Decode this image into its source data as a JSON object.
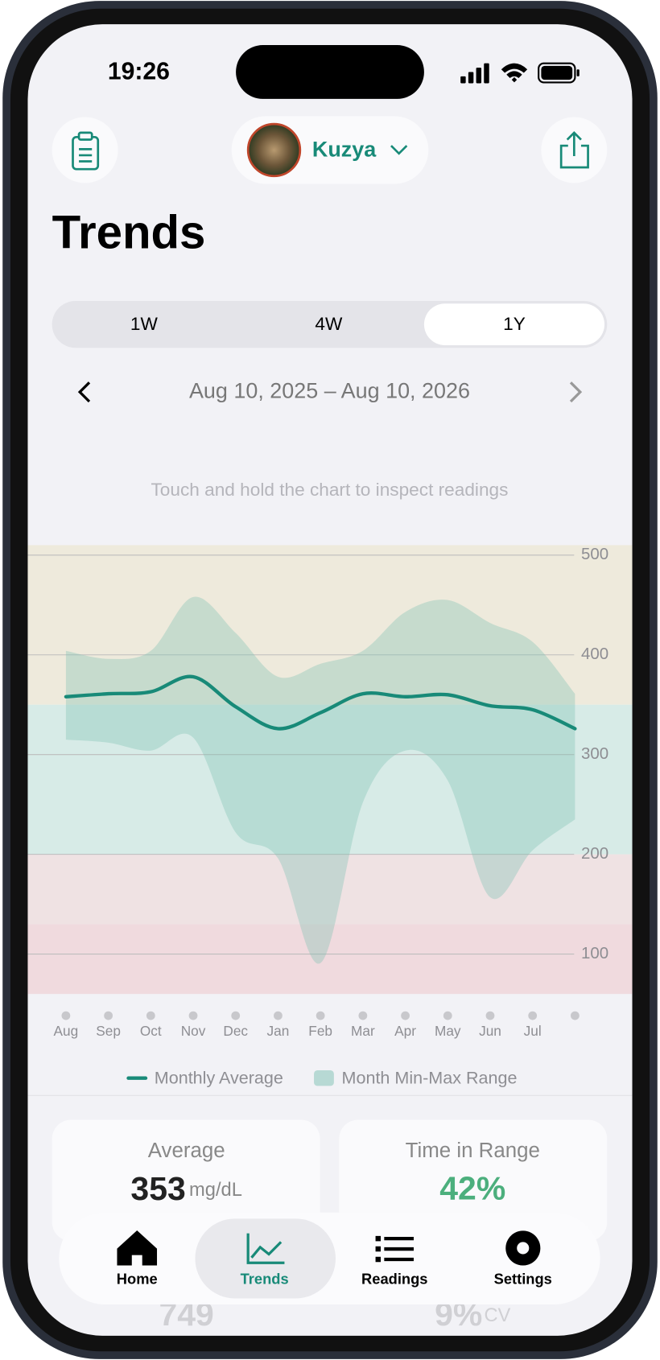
{
  "status_bar": {
    "time": "19:26"
  },
  "header": {
    "profile_name": "Kuzya"
  },
  "title": "Trends",
  "segments": {
    "options": [
      "1W",
      "4W",
      "1Y"
    ],
    "selected": 2
  },
  "date_range": "Aug 10, 2025 – Aug 10, 2026",
  "hint": "Touch and hold the chart to inspect readings",
  "chart": {
    "type": "line",
    "categories": [
      "Aug",
      "Sep",
      "Oct",
      "Nov",
      "Dec",
      "Jan",
      "Feb",
      "Mar",
      "Apr",
      "May",
      "Jun",
      "Jul",
      null
    ],
    "ylim": [
      60,
      510
    ],
    "yticks": [
      100,
      200,
      300,
      400,
      500
    ],
    "grid": true,
    "bands": [
      {
        "from": 350,
        "to": 510,
        "color": "#eeeadc"
      },
      {
        "from": 200,
        "to": 350,
        "color": "#d7ebe7"
      },
      {
        "from": 130,
        "to": 200,
        "color": "#efe2e3"
      },
      {
        "from": 60,
        "to": 130,
        "color": "#f0dade"
      }
    ],
    "series": [
      {
        "name": "Monthly Average",
        "color": "#188a78",
        "values": [
          358,
          361,
          363,
          378,
          348,
          326,
          342,
          361,
          358,
          360,
          349,
          345,
          326
        ]
      },
      {
        "name": "Month Min-Max Range",
        "color": "#7cbfb2",
        "type": "range",
        "high": [
          404,
          396,
          404,
          458,
          422,
          378,
          391,
          404,
          443,
          455,
          432,
          413,
          361
        ],
        "low": [
          315,
          312,
          304,
          317,
          222,
          196,
          91,
          252,
          304,
          274,
          157,
          204,
          235
        ]
      }
    ]
  },
  "stats": [
    {
      "label": "Average",
      "value": 353,
      "unit": "mg/dL"
    },
    {
      "label": "Time in Range",
      "value": "42%"
    }
  ],
  "stats_below": [
    {
      "value": 749
    },
    {
      "value": "9%",
      "unit": "CV"
    }
  ],
  "nav": {
    "items": [
      "Home",
      "Trends",
      "Readings",
      "Settings"
    ],
    "active": 1
  }
}
